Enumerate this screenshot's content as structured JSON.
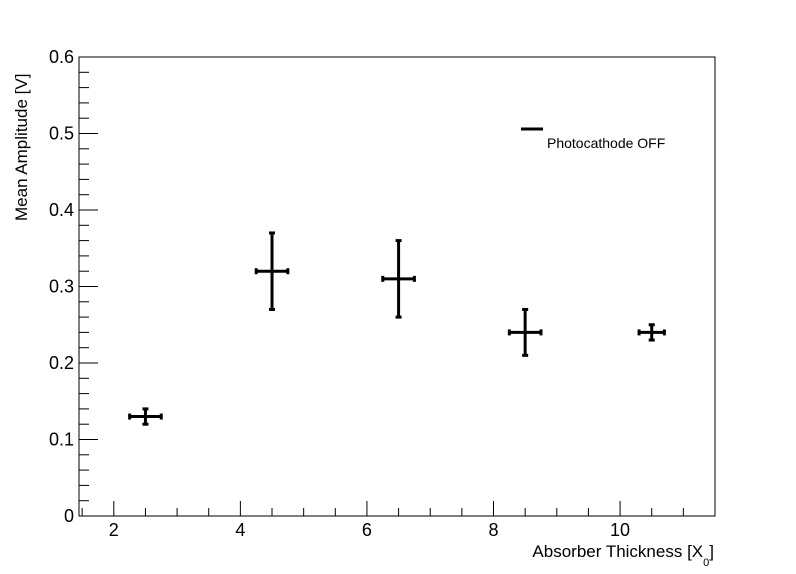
{
  "chart_data": {
    "type": "scatter",
    "title": "",
    "xlabel": "Absorber Thickness [X",
    "xlabel_subscript": "0",
    "xlabel_suffix": "]",
    "ylabel": "Mean Amplitude [V]",
    "xlim": [
      1.45,
      11.5
    ],
    "ylim": [
      0,
      0.6
    ],
    "x_ticks": [
      2,
      4,
      6,
      8,
      10
    ],
    "x_tick_labels": [
      "2",
      "4",
      "6",
      "8",
      "10"
    ],
    "y_ticks": [
      0,
      0.1,
      0.2,
      0.3,
      0.4,
      0.5,
      0.6
    ],
    "y_tick_labels": [
      "0",
      "0.1",
      "0.2",
      "0.3",
      "0.4",
      "0.5",
      "0.6"
    ],
    "grid": false,
    "legend_position": "top-right",
    "series": [
      {
        "name": "Photocathode OFF",
        "color": "#000000",
        "x": [
          2.5,
          4.5,
          6.5,
          8.5,
          10.5
        ],
        "y": [
          0.13,
          0.32,
          0.31,
          0.24,
          0.24
        ],
        "x_err": [
          0.25,
          0.25,
          0.25,
          0.25,
          0.2
        ],
        "y_err": [
          0.01,
          0.05,
          0.05,
          0.03,
          0.01
        ]
      }
    ]
  }
}
